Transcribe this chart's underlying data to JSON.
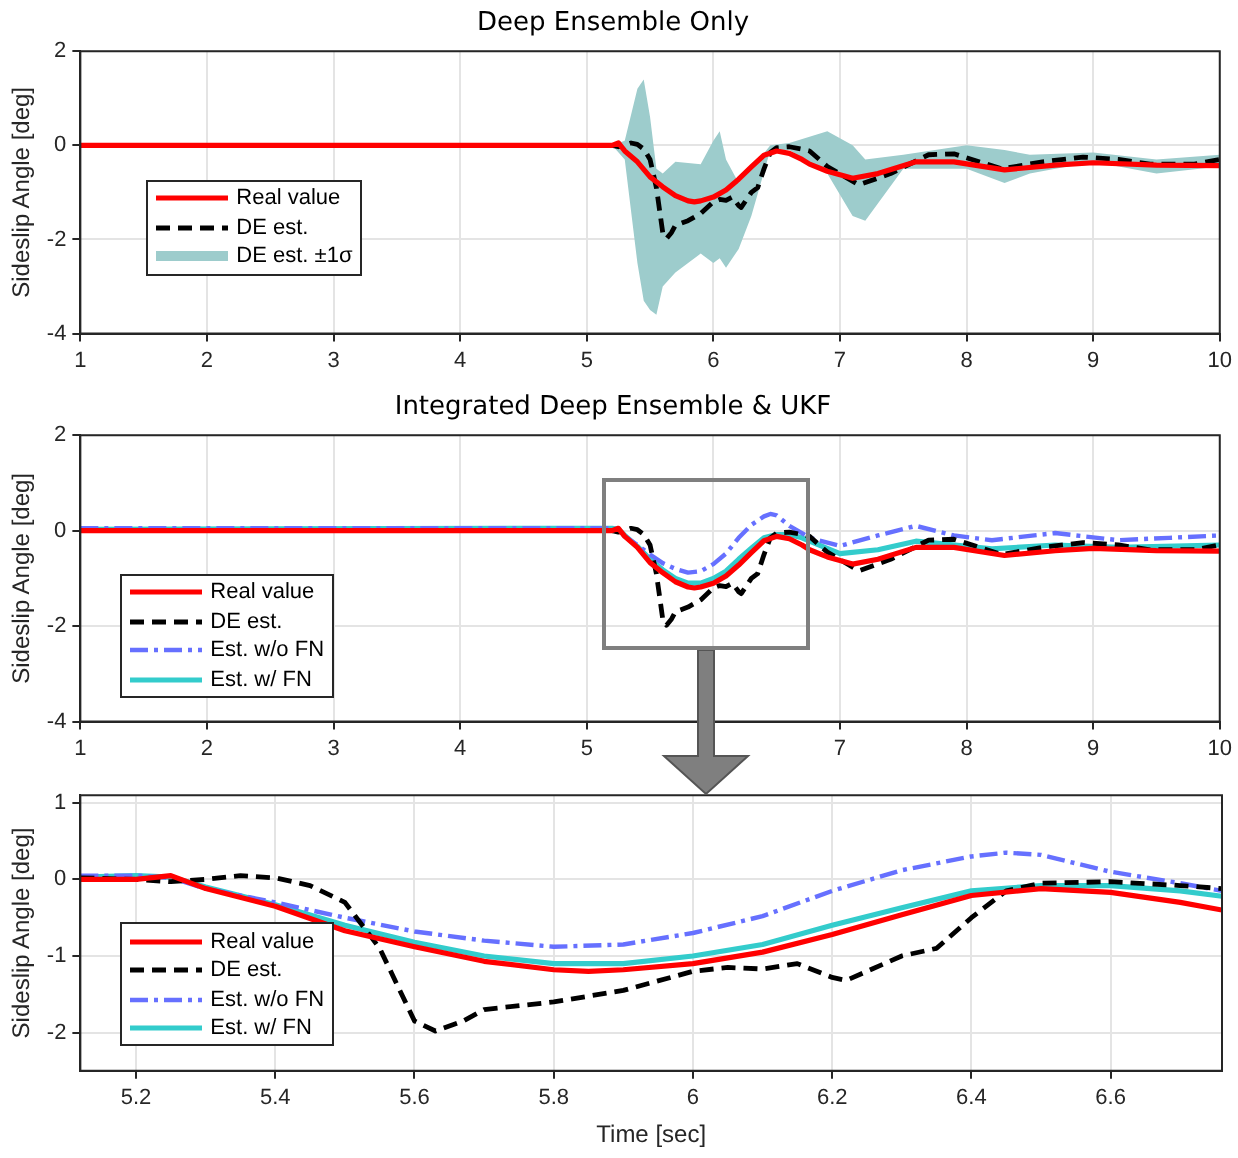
{
  "chart_data": [
    {
      "type": "line",
      "title": "Deep Ensemble Only",
      "ylabel": "Sideslip Angle [deg]",
      "xlim": [
        1,
        10
      ],
      "xticks": [
        1,
        2,
        3,
        4,
        5,
        6,
        7,
        8,
        9,
        10
      ],
      "ylim": [
        -4,
        2
      ],
      "yticks": [
        -4,
        -2,
        0,
        2
      ],
      "grid": true,
      "legend": "left",
      "series": [
        {
          "name": "Real value",
          "color": "#ff0000",
          "line_style": "solid",
          "x": [
            1,
            5.2,
            5.25,
            5.3,
            5.4,
            5.5,
            5.6,
            5.7,
            5.8,
            5.85,
            5.9,
            6.0,
            6.1,
            6.2,
            6.3,
            6.4,
            6.5,
            6.6,
            6.7,
            6.76,
            6.9,
            7.1,
            7.3,
            7.6,
            7.9,
            8.3,
            8.7,
            9.0,
            9.5,
            10
          ],
          "values": [
            0,
            0,
            0.05,
            -0.12,
            -0.35,
            -0.67,
            -0.88,
            -1.07,
            -1.18,
            -1.2,
            -1.18,
            -1.1,
            -0.95,
            -0.72,
            -0.46,
            -0.21,
            -0.12,
            -0.17,
            -0.3,
            -0.4,
            -0.55,
            -0.7,
            -0.6,
            -0.35,
            -0.35,
            -0.52,
            -0.42,
            -0.37,
            -0.42,
            -0.43
          ]
        },
        {
          "name": "DE est.",
          "color": "#000000",
          "line_style": "dashed",
          "x": [
            1,
            5.2,
            5.25,
            5.3,
            5.35,
            5.4,
            5.45,
            5.5,
            5.55,
            5.6,
            5.63,
            5.67,
            5.7,
            5.8,
            5.9,
            6.0,
            6.05,
            6.1,
            6.15,
            6.2,
            6.22,
            6.3,
            6.35,
            6.4,
            6.45,
            6.5,
            6.6,
            6.7,
            6.76,
            6.9,
            7.15,
            7.4,
            7.7,
            7.9,
            8.28,
            8.6,
            8.92,
            9.2,
            9.45,
            9.8,
            10
          ],
          "values": [
            0,
            0,
            -0.03,
            0,
            0.05,
            0.02,
            -0.08,
            -0.3,
            -0.9,
            -1.85,
            -1.98,
            -1.85,
            -1.7,
            -1.6,
            -1.45,
            -1.2,
            -1.15,
            -1.17,
            -1.1,
            -1.28,
            -1.32,
            -1.0,
            -0.9,
            -0.5,
            -0.15,
            -0.05,
            -0.03,
            -0.08,
            -0.12,
            -0.45,
            -0.84,
            -0.6,
            -0.2,
            -0.18,
            -0.5,
            -0.35,
            -0.25,
            -0.3,
            -0.4,
            -0.4,
            -0.3
          ]
        },
        {
          "name": "DE est. ±1σ",
          "type": "area",
          "color": "#9dcccc",
          "x": [
            1,
            5.2,
            5.3,
            5.4,
            5.45,
            5.5,
            5.55,
            5.6,
            5.7,
            5.9,
            6.0,
            6.05,
            6.1,
            6.2,
            6.3,
            6.45,
            6.6,
            6.9,
            7.1,
            7.2,
            7.5,
            8.0,
            8.3,
            8.5,
            9.0,
            9.5,
            10
          ],
          "values": [
            null,
            null,
            null,
            null,
            null,
            null,
            null,
            null,
            null,
            null,
            null,
            null,
            null,
            null,
            null,
            null,
            null,
            null,
            null,
            null,
            null,
            null,
            null,
            null,
            null,
            null,
            null
          ],
          "upper": [
            0,
            0,
            0.1,
            1.2,
            1.4,
            0.6,
            -0.5,
            -0.6,
            -0.35,
            -0.4,
            0.1,
            0.3,
            -0.3,
            -0.8,
            -0.5,
            0,
            0.05,
            0.3,
            0,
            -0.3,
            -0.2,
            0,
            -0.1,
            -0.2,
            -0.15,
            -0.3,
            -0.2
          ],
          "lower": [
            0,
            0,
            -0.3,
            -2.5,
            -3.3,
            -3.5,
            -3.6,
            -3.0,
            -2.7,
            -2.3,
            -2.5,
            -2.4,
            -2.6,
            -2.2,
            -1.5,
            -0.1,
            -0.1,
            -0.6,
            -1.5,
            -1.6,
            -0.5,
            -0.5,
            -0.8,
            -0.6,
            -0.35,
            -0.6,
            -0.45
          ]
        }
      ]
    },
    {
      "type": "line",
      "title": "Integrated Deep Ensemble & UKF",
      "ylabel": "Sideslip Angle [deg]",
      "xlim": [
        1,
        10
      ],
      "xticks": [
        1,
        2,
        3,
        4,
        5,
        {
          "value": 6,
          "label": null
        },
        7,
        8,
        9,
        10
      ],
      "ylim": [
        -4,
        2
      ],
      "yticks": [
        -4,
        -2,
        0,
        2
      ],
      "grid": true,
      "legend": "bottom left",
      "series": [
        {
          "name": "Real value",
          "color": "#ff0000",
          "line_style": "solid",
          "x": [
            1,
            5.2,
            5.25,
            5.3,
            5.4,
            5.5,
            5.6,
            5.7,
            5.8,
            5.85,
            5.9,
            6.0,
            6.1,
            6.2,
            6.3,
            6.4,
            6.5,
            6.6,
            6.7,
            6.76,
            6.9,
            7.1,
            7.3,
            7.6,
            7.9,
            8.3,
            8.7,
            9.0,
            9.5,
            10
          ],
          "values": [
            0,
            0,
            0.05,
            -0.12,
            -0.35,
            -0.67,
            -0.88,
            -1.07,
            -1.18,
            -1.2,
            -1.18,
            -1.1,
            -0.95,
            -0.72,
            -0.46,
            -0.21,
            -0.12,
            -0.17,
            -0.3,
            -0.4,
            -0.55,
            -0.7,
            -0.6,
            -0.35,
            -0.35,
            -0.52,
            -0.42,
            -0.37,
            -0.42,
            -0.43
          ]
        },
        {
          "name": "DE est.",
          "color": "#000000",
          "line_style": "dashed",
          "x": [
            1,
            5.2,
            5.25,
            5.3,
            5.35,
            5.4,
            5.45,
            5.5,
            5.55,
            5.6,
            5.63,
            5.67,
            5.7,
            5.8,
            5.9,
            6.0,
            6.05,
            6.1,
            6.15,
            6.2,
            6.22,
            6.3,
            6.35,
            6.4,
            6.45,
            6.5,
            6.6,
            6.7,
            6.76,
            6.9,
            7.15,
            7.4,
            7.7,
            7.9,
            8.28,
            8.6,
            8.92,
            9.2,
            9.45,
            9.8,
            10
          ],
          "values": [
            0,
            0,
            -0.03,
            0,
            0.05,
            0.02,
            -0.08,
            -0.3,
            -0.9,
            -1.85,
            -1.98,
            -1.85,
            -1.7,
            -1.6,
            -1.45,
            -1.2,
            -1.15,
            -1.17,
            -1.1,
            -1.28,
            -1.32,
            -1.0,
            -0.9,
            -0.5,
            -0.15,
            -0.05,
            -0.03,
            -0.08,
            -0.12,
            -0.45,
            -0.84,
            -0.6,
            -0.2,
            -0.18,
            -0.5,
            -0.35,
            -0.25,
            -0.3,
            -0.4,
            -0.4,
            -0.3
          ]
        },
        {
          "name": "Est. w/o FN",
          "color": "#6670ff",
          "line_style": "dashdot",
          "x": [
            1,
            5.2,
            5.25,
            5.3,
            5.4,
            5.5,
            5.6,
            5.7,
            5.8,
            5.9,
            6.0,
            6.1,
            6.2,
            6.3,
            6.4,
            6.45,
            6.5,
            6.6,
            6.7,
            6.76,
            7.0,
            7.3,
            7.6,
            7.9,
            8.2,
            8.7,
            9.2,
            9.6,
            10
          ],
          "values": [
            0.05,
            0.05,
            0.02,
            -0.12,
            -0.3,
            -0.5,
            -0.68,
            -0.8,
            -0.88,
            -0.85,
            -0.7,
            -0.48,
            -0.15,
            0.12,
            0.3,
            0.35,
            0.32,
            0.1,
            -0.05,
            -0.15,
            -0.32,
            -0.1,
            0.1,
            -0.1,
            -0.2,
            -0.05,
            -0.2,
            -0.15,
            -0.1
          ]
        },
        {
          "name": "Est. w/ FN",
          "color": "#33cccc",
          "line_style": "solid",
          "x": [
            1,
            5.2,
            5.25,
            5.3,
            5.4,
            5.5,
            5.6,
            5.7,
            5.8,
            5.9,
            6.0,
            6.1,
            6.2,
            6.3,
            6.4,
            6.5,
            6.6,
            6.7,
            6.76,
            7.0,
            7.3,
            7.6,
            8.2,
            8.7,
            9.2,
            10
          ],
          "values": [
            0.03,
            0.05,
            0.03,
            -0.1,
            -0.33,
            -0.6,
            -0.82,
            -1.0,
            -1.1,
            -1.1,
            -1.0,
            -0.85,
            -0.6,
            -0.37,
            -0.15,
            -0.08,
            -0.08,
            -0.15,
            -0.22,
            -0.48,
            -0.4,
            -0.22,
            -0.38,
            -0.3,
            -0.35,
            -0.3
          ]
        }
      ]
    },
    {
      "type": "line",
      "xlabel": "Time [sec]",
      "ylabel": "Sideslip Angle [deg]",
      "xlim": [
        5.12,
        6.76
      ],
      "xticks": [
        5.2,
        5.4,
        5.6,
        5.8,
        6,
        6.2,
        6.4,
        6.6
      ],
      "ylim": [
        -2.5,
        1.1
      ],
      "yticks": [
        -2,
        -1,
        0,
        1
      ],
      "grid": true,
      "legend": "bottom left",
      "series": [
        {
          "name": "Real value",
          "color": "#ff0000",
          "line_style": "solid",
          "x": [
            5.12,
            5.2,
            5.25,
            5.3,
            5.4,
            5.5,
            5.6,
            5.7,
            5.8,
            5.85,
            5.9,
            6.0,
            6.1,
            6.2,
            6.3,
            6.4,
            6.5,
            6.6,
            6.7,
            6.76
          ],
          "values": [
            0,
            0,
            0.05,
            -0.12,
            -0.35,
            -0.67,
            -0.88,
            -1.07,
            -1.18,
            -1.2,
            -1.18,
            -1.1,
            -0.95,
            -0.72,
            -0.46,
            -0.21,
            -0.12,
            -0.17,
            -0.3,
            -0.4
          ]
        },
        {
          "name": "DE est.",
          "color": "#000000",
          "line_style": "dashed",
          "x": [
            5.12,
            5.2,
            5.25,
            5.3,
            5.35,
            5.4,
            5.45,
            5.5,
            5.55,
            5.6,
            5.63,
            5.67,
            5.7,
            5.8,
            5.9,
            6.0,
            6.05,
            6.1,
            6.15,
            6.2,
            6.22,
            6.3,
            6.35,
            6.4,
            6.45,
            6.5,
            6.6,
            6.7,
            6.76
          ],
          "values": [
            0.02,
            0,
            -0.03,
            0,
            0.05,
            0.02,
            -0.08,
            -0.3,
            -0.9,
            -1.85,
            -1.98,
            -1.85,
            -1.7,
            -1.6,
            -1.45,
            -1.2,
            -1.15,
            -1.17,
            -1.1,
            -1.28,
            -1.32,
            -1.0,
            -0.9,
            -0.5,
            -0.15,
            -0.05,
            -0.03,
            -0.08,
            -0.12
          ]
        },
        {
          "name": "Est. w/o FN",
          "color": "#6670ff",
          "line_style": "dashdot",
          "x": [
            5.12,
            5.2,
            5.25,
            5.3,
            5.4,
            5.5,
            5.6,
            5.7,
            5.8,
            5.9,
            6.0,
            6.1,
            6.2,
            6.3,
            6.4,
            6.45,
            6.5,
            6.6,
            6.7,
            6.76
          ],
          "values": [
            0.05,
            0.05,
            0.02,
            -0.12,
            -0.3,
            -0.5,
            -0.68,
            -0.8,
            -0.88,
            -0.85,
            -0.7,
            -0.48,
            -0.15,
            0.12,
            0.3,
            0.35,
            0.32,
            0.1,
            -0.05,
            -0.15
          ]
        },
        {
          "name": "Est. w/ FN",
          "color": "#33cccc",
          "line_style": "solid",
          "x": [
            5.12,
            5.2,
            5.25,
            5.3,
            5.4,
            5.5,
            5.6,
            5.7,
            5.8,
            5.9,
            6.0,
            6.1,
            6.2,
            6.3,
            6.4,
            6.5,
            6.6,
            6.7,
            6.76
          ],
          "values": [
            0.03,
            0.05,
            0.03,
            -0.1,
            -0.33,
            -0.6,
            -0.82,
            -1.0,
            -1.1,
            -1.1,
            -1.0,
            -0.85,
            -0.6,
            -0.37,
            -0.15,
            -0.08,
            -0.08,
            -0.15,
            -0.22
          ]
        }
      ]
    }
  ]
}
